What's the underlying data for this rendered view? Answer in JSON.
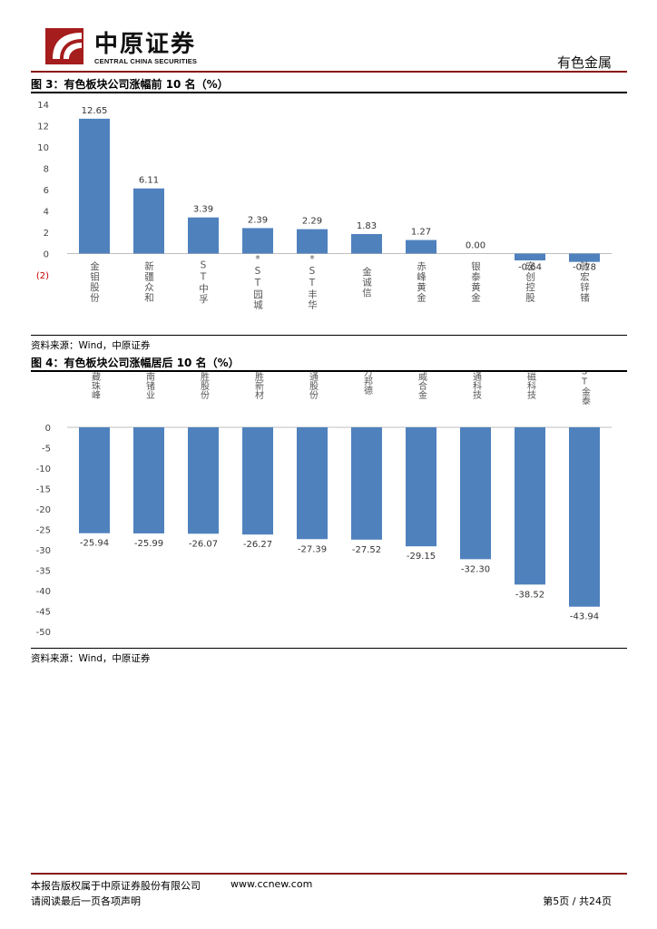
{
  "header": {
    "company_cn": "中原证券",
    "company_en": "CENTRAL CHINA SECURITIES",
    "section": "有色金属"
  },
  "figures": [
    {
      "title": "图 3：有色板块公司涨幅前 10 名（%）",
      "source": "资料来源：Wind，中原证券"
    },
    {
      "title": "图 4：有色板块公司涨幅居后 10 名（%）",
      "source": "资料来源：Wind，中原证券"
    }
  ],
  "chart_data": [
    {
      "type": "bar",
      "categories": [
        "金钼股份",
        "新疆众和",
        "ST中孚",
        "*ST园城",
        "*ST丰华",
        "金诚信",
        "赤峰黄金",
        "银泰黄金",
        "宏创控股",
        "驰宏锌锗"
      ],
      "values": [
        12.65,
        6.11,
        3.39,
        2.39,
        2.29,
        1.83,
        1.27,
        0.0,
        -0.64,
        -0.78
      ],
      "value_labels": [
        "12.65",
        "6.11",
        "3.39",
        "2.39",
        "2.29",
        "1.83",
        "1.27",
        "0.00",
        "-0.64",
        "-0.78"
      ],
      "ylim": [
        -2,
        14
      ],
      "yticks": [
        14,
        12,
        10,
        8,
        6,
        4,
        2,
        0,
        -2
      ],
      "ytick_labels": [
        "14",
        "12",
        "10",
        "8",
        "6",
        "4",
        "2",
        "0",
        "(2)"
      ],
      "xlabel": "",
      "ylabel": "",
      "bar_color": "#4f81bd",
      "grid": false
    },
    {
      "type": "bar",
      "categories": [
        "西藏珠峰",
        "云南锗业",
        "和胜股份",
        "鼎胜新材",
        "天通股份",
        "万邦德",
        "博威合金",
        "洛通科技",
        "龙磁科技",
        "*ST金泰"
      ],
      "values": [
        -25.94,
        -25.99,
        -26.07,
        -26.27,
        -27.39,
        -27.52,
        -29.15,
        -32.3,
        -38.52,
        -43.94
      ],
      "value_labels": [
        "-25.94",
        "-25.99",
        "-26.07",
        "-26.27",
        "-27.39",
        "-27.52",
        "-29.15",
        "-32.30",
        "-38.52",
        "-43.94"
      ],
      "ylim": [
        -50,
        0
      ],
      "yticks": [
        0,
        -5,
        -10,
        -15,
        -20,
        -25,
        -30,
        -35,
        -40,
        -45,
        -50
      ],
      "ytick_labels": [
        "0",
        "-5",
        "-10",
        "-15",
        "-20",
        "-25",
        "-30",
        "-35",
        "-40",
        "-45",
        "-50"
      ],
      "xlabel": "",
      "ylabel": "",
      "bar_color": "#4f81bd",
      "grid": false
    }
  ],
  "footer": {
    "copyright": "本报告版权属于中原证券股份有限公司",
    "website": "www.ccnew.com",
    "disclaimer": "请阅读最后一页各项声明",
    "page": "第5页 / 共24页"
  }
}
